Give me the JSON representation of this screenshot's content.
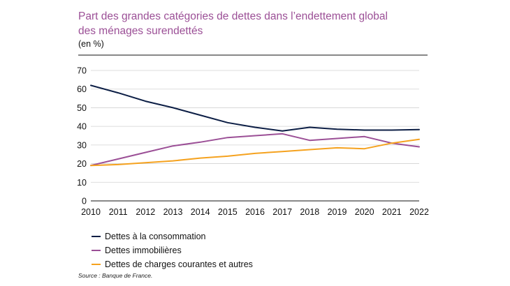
{
  "chart_data": {
    "type": "line",
    "title_line1": "Part des grandes catégories de dettes dans l’endettement global",
    "title_line2": "des ménages surendettés",
    "unit_label": "(en %)",
    "x": [
      "2010",
      "2011",
      "2012",
      "2013",
      "2014",
      "2015",
      "2016",
      "2017",
      "2018",
      "2019",
      "2020",
      "2021",
      "2022"
    ],
    "ylim": [
      0,
      70
    ],
    "yticks": [
      "0",
      "10",
      "20",
      "30",
      "40",
      "50",
      "60",
      "70"
    ],
    "series": [
      {
        "name": "Dettes à la consommation",
        "color": "#0c1e45",
        "values": [
          62,
          58,
          53.5,
          50,
          46,
          42,
          39.5,
          37.5,
          39.5,
          38.5,
          38,
          38,
          38.3
        ]
      },
      {
        "name": "Dettes immobilières",
        "color": "#9b4f96",
        "values": [
          19,
          22.5,
          26,
          29.5,
          31.5,
          34,
          35,
          36,
          32.5,
          33.5,
          34.5,
          31,
          29
        ]
      },
      {
        "name": "Dettes de charges courantes et autres",
        "color": "#f5a21f",
        "values": [
          19,
          19.5,
          20.5,
          21.5,
          23,
          24,
          25.5,
          26.5,
          27.5,
          28.5,
          28,
          31,
          33
        ]
      }
    ],
    "source": "Source : Banque de France."
  }
}
